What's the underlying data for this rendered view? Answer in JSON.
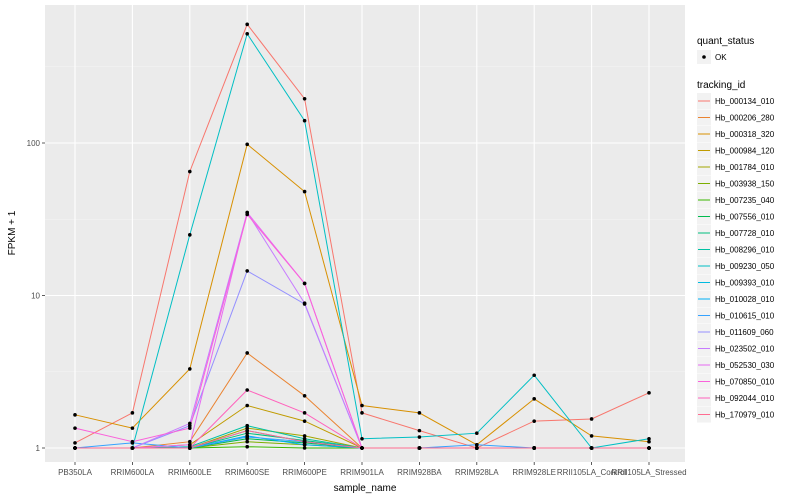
{
  "chart_data": {
    "type": "line",
    "x_label": "sample_name",
    "y_label": "FPKM + 1",
    "y_scale": "log10",
    "y_ticks": [
      1,
      10,
      100
    ],
    "y_tick_labels": [
      "1",
      "10",
      "100"
    ],
    "categories": [
      "PB350LA",
      "RRIM600LA",
      "RRIM600LE",
      "RRIM600SE",
      "RRIM600PE",
      "RRIM901LA",
      "RRIM928BA",
      "RRIM928LA",
      "RRIM928LE",
      "RRII105LA_Control",
      "RRII105LA_Stressed"
    ],
    "legend_shape": {
      "title": "quant_status",
      "items": [
        "OK"
      ]
    },
    "legend_color": {
      "title": "tracking_id"
    },
    "series": [
      {
        "name": "Hb_000134_010",
        "color": "#F8766D",
        "values": [
          1.08,
          1.7,
          65,
          600,
          195,
          1.7,
          1.3,
          1.0,
          1.5,
          1.55,
          2.3
        ]
      },
      {
        "name": "Hb_000206_280",
        "color": "#EA8331",
        "values": [
          1.0,
          1.0,
          1.1,
          4.2,
          2.2,
          1.0,
          1.0,
          1.0,
          1.0,
          1.0,
          1.0
        ]
      },
      {
        "name": "Hb_000318_320",
        "color": "#D89000",
        "values": [
          1.65,
          1.35,
          3.3,
          98,
          48,
          1.9,
          1.7,
          1.05,
          2.1,
          1.2,
          1.1
        ]
      },
      {
        "name": "Hb_000984_120",
        "color": "#C09B00",
        "values": [
          1.0,
          1.0,
          1.05,
          1.9,
          1.5,
          1.0,
          1.0,
          1.0,
          1.0,
          1.0,
          1.0
        ]
      },
      {
        "name": "Hb_001784_010",
        "color": "#A3A500",
        "values": [
          1.0,
          1.0,
          1.0,
          1.35,
          1.2,
          1.0,
          1.0,
          1.0,
          1.0,
          1.0,
          1.0
        ]
      },
      {
        "name": "Hb_003938_150",
        "color": "#7CAE00",
        "values": [
          1.0,
          1.0,
          1.0,
          1.1,
          1.05,
          1.0,
          1.0,
          1.0,
          1.0,
          1.0,
          1.0
        ]
      },
      {
        "name": "Hb_007235_040",
        "color": "#39B600",
        "values": [
          1.0,
          1.0,
          1.0,
          1.02,
          1.0,
          1.0,
          1.0,
          1.0,
          1.0,
          1.0,
          1.0
        ]
      },
      {
        "name": "Hb_007556_010",
        "color": "#00BB4E",
        "values": [
          1.0,
          1.0,
          1.0,
          1.15,
          1.08,
          1.0,
          1.0,
          1.0,
          1.0,
          1.0,
          1.0
        ]
      },
      {
        "name": "Hb_007728_010",
        "color": "#00BF7D",
        "values": [
          1.0,
          1.0,
          1.0,
          1.25,
          1.12,
          1.0,
          1.0,
          1.0,
          1.0,
          1.0,
          1.0
        ]
      },
      {
        "name": "Hb_008296_010",
        "color": "#00C1A3",
        "values": [
          1.0,
          1.0,
          1.02,
          1.4,
          1.15,
          1.0,
          1.0,
          1.0,
          1.0,
          1.0,
          1.0
        ]
      },
      {
        "name": "Hb_009230_050",
        "color": "#00BFC4",
        "values": [
          1.0,
          1.0,
          25,
          520,
          140,
          1.15,
          1.18,
          1.25,
          3.0,
          1.0,
          1.15
        ]
      },
      {
        "name": "Hb_009393_010",
        "color": "#00BAE0",
        "values": [
          1.0,
          1.0,
          1.0,
          1.3,
          1.1,
          1.0,
          1.0,
          1.0,
          1.0,
          1.0,
          1.0
        ]
      },
      {
        "name": "Hb_010028_010",
        "color": "#00B0F6",
        "values": [
          1.0,
          1.0,
          1.0,
          1.2,
          1.05,
          1.0,
          1.0,
          1.0,
          1.0,
          1.0,
          1.0
        ]
      },
      {
        "name": "Hb_010615_010",
        "color": "#35A2FF",
        "values": [
          1.0,
          1.08,
          1.0,
          1.18,
          1.1,
          1.0,
          1.0,
          1.05,
          1.0,
          1.0,
          1.0
        ]
      },
      {
        "name": "Hb_011609_060",
        "color": "#9590FF",
        "values": [
          1.0,
          1.0,
          1.4,
          14.5,
          8.8,
          1.0,
          1.0,
          1.0,
          1.0,
          1.0,
          1.0
        ]
      },
      {
        "name": "Hb_023502_010",
        "color": "#C77CFF",
        "values": [
          1.0,
          1.0,
          1.45,
          35,
          8.9,
          1.0,
          1.0,
          1.0,
          1.0,
          1.0,
          1.0
        ]
      },
      {
        "name": "Hb_052530_030",
        "color": "#E76BF3",
        "values": [
          1.0,
          1.0,
          1.05,
          35,
          12,
          1.0,
          1.0,
          1.0,
          1.0,
          1.0,
          1.0
        ]
      },
      {
        "name": "Hb_070850_010",
        "color": "#FA62DB",
        "values": [
          1.35,
          1.1,
          1.35,
          34,
          12,
          1.0,
          1.0,
          1.0,
          1.0,
          1.0,
          1.0
        ]
      },
      {
        "name": "Hb_092044_010",
        "color": "#FF62BC",
        "values": [
          1.0,
          1.0,
          1.0,
          2.4,
          1.7,
          1.0,
          1.0,
          1.0,
          1.0,
          1.0,
          1.0
        ]
      },
      {
        "name": "Hb_170979_010",
        "color": "#FF6C91",
        "values": [
          1.0,
          1.0,
          1.0,
          1.3,
          1.1,
          1.0,
          1.0,
          1.0,
          1.0,
          1.0,
          1.0
        ]
      }
    ]
  }
}
